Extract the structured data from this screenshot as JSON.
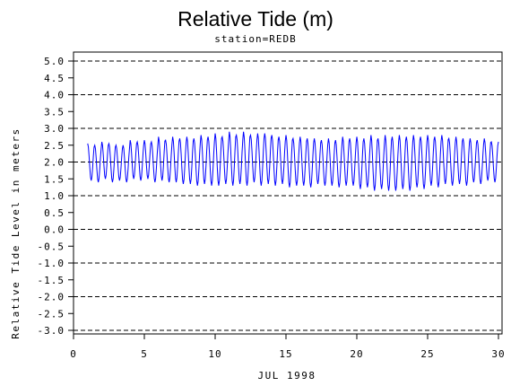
{
  "chart_data": {
    "type": "line",
    "title": "Relative Tide (m)",
    "subtitle": "station=REDB",
    "xlabel": "JUL 1998",
    "ylabel": "Relative Tide Level in meters",
    "xlim": [
      0,
      30
    ],
    "ylim": [
      -3.0,
      5.0
    ],
    "x_ticks": [
      0,
      5,
      10,
      15,
      20,
      25,
      30
    ],
    "y_ticks": [
      5.0,
      4.5,
      4.0,
      3.5,
      3.0,
      2.5,
      2.0,
      1.5,
      1.0,
      0.5,
      0.0,
      -0.5,
      -1.0,
      -1.5,
      -2.0,
      -2.5,
      -3.0
    ],
    "y_tick_labels": [
      "5.0",
      "4.5",
      "4.0",
      "3.5",
      "3.0",
      "2.5",
      "2.0",
      "1.5",
      "1.0",
      "0.5",
      "0.0",
      "-0.5",
      "-1.0",
      "-1.5",
      "-2.0",
      "-2.5",
      "-3.0"
    ],
    "grid": {
      "horizontal_dashed_at": [
        5.0,
        4.0,
        3.0,
        2.0,
        1.0,
        0.0,
        -1.0,
        -2.0,
        -3.0
      ]
    },
    "colors": {
      "series": "#0000ff",
      "grid": "#000000",
      "axes": "#000000"
    },
    "series": [
      {
        "x_start": 1,
        "x_end": 30,
        "highs": [
          2.55,
          2.5,
          2.6,
          2.55,
          2.5,
          2.5,
          2.65,
          2.6,
          2.65,
          2.6,
          2.75,
          2.65,
          2.75,
          2.7,
          2.75,
          2.7,
          2.8,
          2.75,
          2.85,
          2.75,
          2.9,
          2.8,
          2.9,
          2.8,
          2.85,
          2.85,
          2.8,
          2.75,
          2.8,
          2.7,
          2.75,
          2.7,
          2.7,
          2.65,
          2.7,
          2.65,
          2.75,
          2.7,
          2.75,
          2.7,
          2.8,
          2.7,
          2.8,
          2.75,
          2.8,
          2.75,
          2.8,
          2.75,
          2.8,
          2.75,
          2.8,
          2.7,
          2.75,
          2.7,
          2.7,
          2.65,
          2.7,
          2.6
        ],
        "lows": [
          1.45,
          1.4,
          1.5,
          1.4,
          1.45,
          1.4,
          1.5,
          1.45,
          1.5,
          1.4,
          1.45,
          1.4,
          1.4,
          1.35,
          1.35,
          1.3,
          1.35,
          1.3,
          1.3,
          1.35,
          1.3,
          1.35,
          1.3,
          1.4,
          1.3,
          1.35,
          1.3,
          1.35,
          1.25,
          1.3,
          1.3,
          1.25,
          1.35,
          1.3,
          1.3,
          1.25,
          1.3,
          1.3,
          1.2,
          1.25,
          1.15,
          1.2,
          1.15,
          1.15,
          1.2,
          1.15,
          1.25,
          1.2,
          1.3,
          1.25,
          1.35,
          1.3,
          1.35,
          1.3,
          1.4,
          1.35,
          1.45,
          1.4
        ]
      }
    ]
  }
}
